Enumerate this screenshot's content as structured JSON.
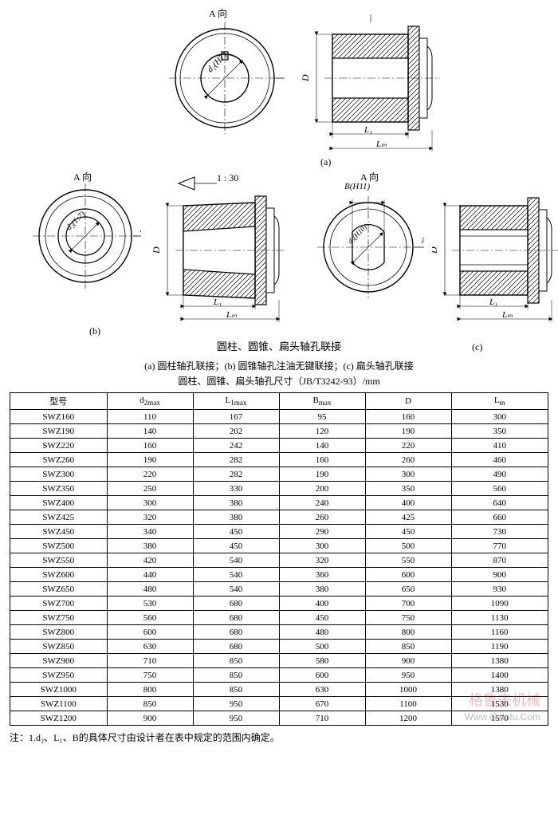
{
  "diagram": {
    "top_label_a": "A 向",
    "bore_label_a": "d₂(H7)",
    "side_dims": {
      "D": "D",
      "L1": "L₁",
      "Lm": "Lₘ",
      "A": "A"
    },
    "sub_a": "(a)",
    "sub_b": "(b)",
    "sub_c": "(c)",
    "taper_ratio": "1 : 30",
    "label_b_a": "A 向",
    "bore_label_b": "d₂(1:7)",
    "label_c_a": "A 向",
    "label_c_B": "B(H11)",
    "bore_label_c": "d₂(H10)",
    "title_main": "圆柱、圆锥、扁头轴孔联接",
    "caption_abc": "(a) 圆柱轴孔联接；(b) 圆锥轴孔注油无键联接；(c) 扁头轴孔联接",
    "table_title": "圆柱、圆锥、扁头轴孔尺寸（JB/T3242-93）/mm"
  },
  "table": {
    "columns": [
      "型号",
      "d₂max",
      "L₁max",
      "Bmax",
      "D",
      "Lₘ"
    ],
    "col_widths": [
      "18%",
      "16%",
      "16%",
      "16%",
      "16%",
      "18%"
    ],
    "rows": [
      [
        "SWZ160",
        "110",
        "167",
        "95",
        "160",
        "300"
      ],
      [
        "SWZ190",
        "140",
        "202",
        "120",
        "190",
        "350"
      ],
      [
        "SWZ220",
        "160",
        "242",
        "140",
        "220",
        "410"
      ],
      [
        "SWZ260",
        "190",
        "282",
        "160",
        "260",
        "460"
      ],
      [
        "SWZ300",
        "220",
        "282",
        "190",
        "300",
        "490"
      ],
      [
        "SWZ350",
        "250",
        "330",
        "200",
        "350",
        "560"
      ],
      [
        "SWZ400",
        "300",
        "380",
        "240",
        "400",
        "640"
      ],
      [
        "SWZ425",
        "320",
        "380",
        "260",
        "425",
        "660"
      ],
      [
        "SWZ450",
        "340",
        "450",
        "290",
        "450",
        "730"
      ],
      [
        "SWZ500",
        "380",
        "450",
        "300",
        "500",
        "770"
      ],
      [
        "SWZ550",
        "420",
        "540",
        "320",
        "550",
        "870"
      ],
      [
        "SWZ600",
        "440",
        "540",
        "360",
        "600",
        "900"
      ],
      [
        "SWZ650",
        "480",
        "540",
        "380",
        "650",
        "930"
      ],
      [
        "SWZ700",
        "530",
        "680",
        "400",
        "700",
        "1090"
      ],
      [
        "SWZ750",
        "560",
        "680",
        "450",
        "750",
        "1130"
      ],
      [
        "SWZ800",
        "600",
        "680",
        "480",
        "800",
        "1160"
      ],
      [
        "SWZ850",
        "630",
        "680",
        "500",
        "850",
        "1190"
      ],
      [
        "SWZ900",
        "710",
        "850",
        "580",
        "900",
        "1380"
      ],
      [
        "SWZ950",
        "750",
        "850",
        "600",
        "950",
        "1400"
      ],
      [
        "SWZ1000",
        "800",
        "850",
        "630",
        "1000",
        "1380"
      ],
      [
        "SWZ1100",
        "850",
        "950",
        "670",
        "1100",
        "1530"
      ],
      [
        "SWZ1200",
        "900",
        "950",
        "710",
        "1200",
        "1570"
      ]
    ]
  },
  "footnote": "注：1.d₂、L₁、B的具体尺寸由设计者在表中规定的范围内确定。",
  "watermark": "格鲁夫机械",
  "watermark_url": "Www.Gelufu.Com",
  "style": {
    "stroke": "#000",
    "thin": 0.8,
    "med": 1.4,
    "hatch": "#000"
  }
}
